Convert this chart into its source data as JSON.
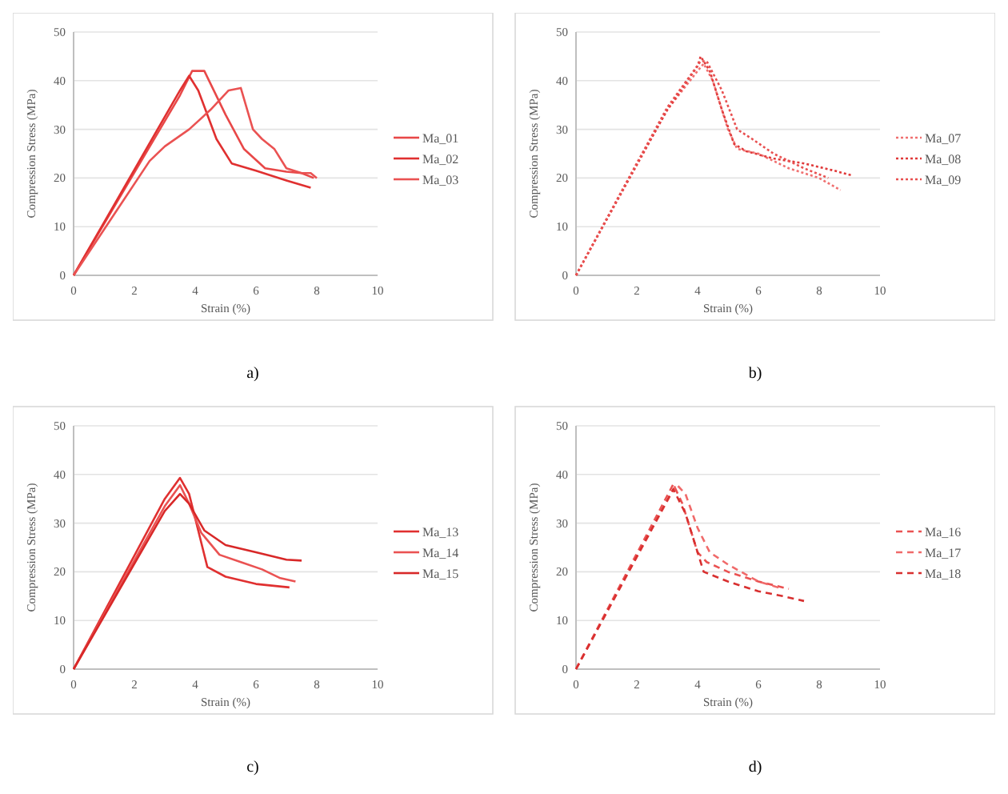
{
  "chart_data": [
    {
      "type": "line",
      "xlabel": "Strain (%)",
      "ylabel": "Compression Stress (MPa)",
      "annotations": [
        "a)"
      ],
      "xlim": [
        0,
        10
      ],
      "xticks": [
        0,
        2,
        4,
        6,
        8,
        10
      ],
      "ylim": [
        0,
        50
      ],
      "yticks": [
        0,
        10,
        20,
        30,
        40,
        50
      ],
      "grid": "y",
      "legend": "right",
      "line_style": "solid",
      "marker": "none",
      "series": [
        {
          "name": "Ma_01",
          "color": "#e84848",
          "x": [
            0,
            3.5,
            3.9,
            4.3,
            5,
            5.6,
            6.3,
            7,
            7.5,
            7.9
          ],
          "values": [
            0,
            37,
            42,
            42,
            33,
            26,
            22,
            21.3,
            21,
            20
          ]
        },
        {
          "name": "Ma_02",
          "color": "#e03030",
          "x": [
            0,
            3.5,
            3.8,
            4.1,
            4.7,
            5.2,
            6,
            7,
            7.8
          ],
          "values": [
            0,
            38,
            41,
            38,
            28,
            23,
            21.5,
            19.5,
            18
          ]
        },
        {
          "name": "Ma_03",
          "color": "#ea5252",
          "x": [
            0,
            2.5,
            3,
            3.8,
            4.5,
            5.1,
            5.5,
            5.9,
            6.2,
            6.6,
            7,
            7.5,
            7.8,
            8
          ],
          "values": [
            0,
            23.5,
            26.5,
            30,
            34,
            38,
            38.5,
            30,
            28,
            26,
            22,
            21,
            21,
            20
          ]
        }
      ]
    },
    {
      "type": "line",
      "xlabel": "Strain (%)",
      "ylabel": "Compression Stress (MPa)",
      "annotations": [
        "b)"
      ],
      "xlim": [
        0,
        10
      ],
      "xticks": [
        0,
        2,
        4,
        6,
        8,
        10
      ],
      "ylim": [
        0,
        50
      ],
      "yticks": [
        0,
        10,
        20,
        30,
        40,
        50
      ],
      "grid": "y",
      "legend": "right",
      "line_style": "dotted",
      "marker": "none",
      "series": [
        {
          "name": "Ma_07",
          "color": "#f07070",
          "x": [
            0,
            2,
            3,
            4,
            4.2,
            4.5,
            5,
            5.3,
            6,
            7,
            8,
            8.7
          ],
          "values": [
            0,
            23,
            34,
            42,
            43.5,
            40,
            30,
            26,
            25,
            22,
            20,
            17.5
          ]
        },
        {
          "name": "Ma_08",
          "color": "#e03a3a",
          "x": [
            0,
            3,
            4,
            4.1,
            4.4,
            4.8,
            5.2,
            5.6,
            6.5,
            7.5,
            8.5,
            9.1
          ],
          "values": [
            0,
            34,
            43,
            45,
            42,
            34,
            27,
            25.5,
            24,
            23,
            21.5,
            20.5
          ]
        },
        {
          "name": "Ma_09",
          "color": "#e85050",
          "x": [
            0,
            3,
            4.1,
            4.3,
            4.8,
            5.3,
            5.8,
            6.5,
            7.5,
            8.3
          ],
          "values": [
            0,
            34.5,
            44,
            44,
            38,
            30,
            28,
            25,
            22,
            20
          ]
        }
      ]
    },
    {
      "type": "line",
      "xlabel": "Strain (%)",
      "ylabel": "Compression Stress (MPa)",
      "annotations": [
        "c)"
      ],
      "xlim": [
        0,
        10
      ],
      "xticks": [
        0,
        2,
        4,
        6,
        8,
        10
      ],
      "ylim": [
        0,
        50
      ],
      "yticks": [
        0,
        10,
        20,
        30,
        40,
        50
      ],
      "grid": "y",
      "legend": "right",
      "line_style": "solid",
      "marker": "none",
      "series": [
        {
          "name": "Ma_13",
          "color": "#e03030",
          "x": [
            0,
            3,
            3.5,
            3.8,
            4.4,
            5,
            6,
            7.1
          ],
          "values": [
            0,
            35,
            39.3,
            36,
            21,
            19,
            17.5,
            16.8
          ]
        },
        {
          "name": "Ma_14",
          "color": "#ea5252",
          "x": [
            0,
            3,
            3.5,
            3.8,
            4.2,
            4.8,
            5.5,
            6.2,
            6.8,
            7.3
          ],
          "values": [
            0,
            33.5,
            37.8,
            34,
            28,
            23.5,
            22,
            20.5,
            18.7,
            18
          ]
        },
        {
          "name": "Ma_15",
          "color": "#d82828",
          "x": [
            0,
            3,
            3.5,
            3.8,
            4.3,
            5,
            6,
            7,
            7.5
          ],
          "values": [
            0,
            32.5,
            36,
            34,
            28.5,
            25.5,
            24,
            22.5,
            22.3
          ]
        }
      ]
    },
    {
      "type": "line",
      "xlabel": "Strain (%)",
      "ylabel": "Compression Stress (MPa)",
      "annotations": [
        "d)"
      ],
      "xlim": [
        0,
        10
      ],
      "xticks": [
        0,
        2,
        4,
        6,
        8,
        10
      ],
      "ylim": [
        0,
        50
      ],
      "yticks": [
        0,
        10,
        20,
        30,
        40,
        50
      ],
      "grid": "y",
      "legend": "right",
      "line_style": "dashed",
      "marker": "none",
      "series": [
        {
          "name": "Ma_16",
          "color": "#ea5252",
          "x": [
            0,
            3.2,
            3.5,
            4,
            4.3,
            5,
            6,
            7
          ],
          "values": [
            0,
            38,
            34,
            24,
            22,
            20,
            18,
            16.5
          ]
        },
        {
          "name": "Ma_17",
          "color": "#f06a6a",
          "x": [
            0,
            3.3,
            3.6,
            4,
            4.4,
            5,
            6,
            6.8
          ],
          "values": [
            0,
            38,
            36,
            29,
            24,
            21.5,
            18,
            16.5
          ]
        },
        {
          "name": "Ma_18",
          "color": "#d83030",
          "x": [
            0,
            3.2,
            3.6,
            4.2,
            5,
            6,
            6.8,
            7.5
          ],
          "values": [
            0,
            37,
            32,
            20,
            18,
            16,
            15,
            14
          ]
        }
      ]
    }
  ]
}
